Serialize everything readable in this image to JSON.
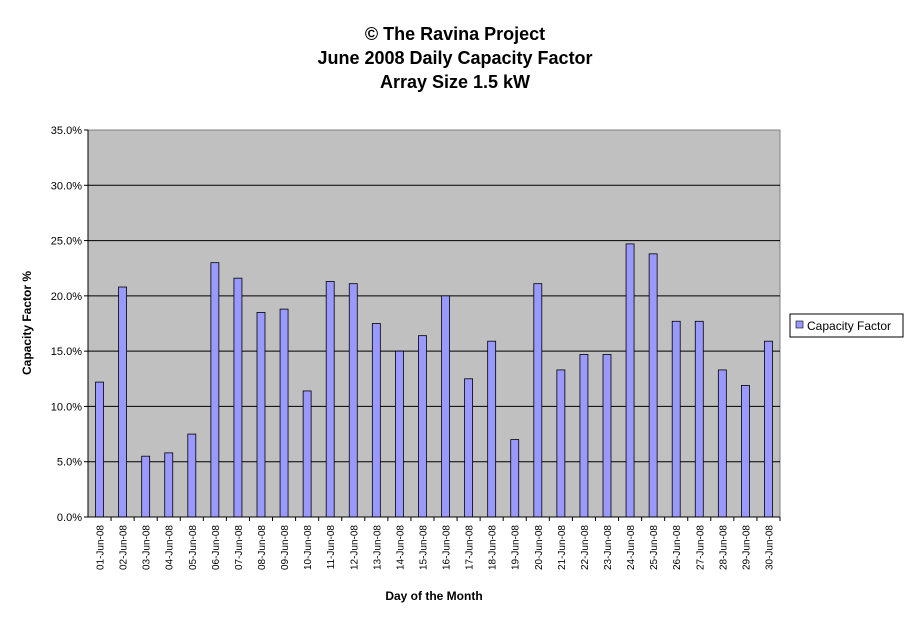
{
  "chart_data": {
    "type": "bar",
    "title_lines": [
      "© The Ravina Project",
      "June 2008 Daily Capacity Factor",
      "Array Size 1.5 kW"
    ],
    "xlabel": "Day of the Month",
    "ylabel": "Capacity Factor %",
    "y_ticks": [
      "0.0%",
      "5.0%",
      "10.0%",
      "15.0%",
      "20.0%",
      "25.0%",
      "30.0%",
      "35.0%"
    ],
    "ylim": [
      0,
      35
    ],
    "grid": true,
    "legend_position": "right",
    "categories": [
      "01-Jun-08",
      "02-Jun-08",
      "03-Jun-08",
      "04-Jun-08",
      "05-Jun-08",
      "06-Jun-08",
      "07-Jun-08",
      "08-Jun-08",
      "09-Jun-08",
      "10-Jun-08",
      "11-Jun-08",
      "12-Jun-08",
      "13-Jun-08",
      "14-Jun-08",
      "15-Jun-08",
      "16-Jun-08",
      "17-Jun-08",
      "18-Jun-08",
      "19-Jun-08",
      "20-Jun-08",
      "21-Jun-08",
      "22-Jun-08",
      "23-Jun-08",
      "24-Jun-08",
      "25-Jun-08",
      "26-Jun-08",
      "27-Jun-08",
      "28-Jun-08",
      "29-Jun-08",
      "30-Jun-08"
    ],
    "series": [
      {
        "name": "Capacity Factor",
        "color": "#9999ff",
        "values": [
          12.2,
          20.8,
          5.5,
          5.8,
          7.5,
          23.0,
          21.6,
          18.5,
          18.8,
          11.4,
          21.3,
          21.1,
          17.5,
          15.0,
          16.4,
          20.0,
          12.5,
          15.9,
          7.0,
          21.1,
          13.3,
          14.7,
          14.7,
          24.7,
          23.8,
          17.7,
          17.7,
          13.3,
          11.9,
          15.9
        ]
      }
    ],
    "plot_background": "#c0c0c0"
  }
}
